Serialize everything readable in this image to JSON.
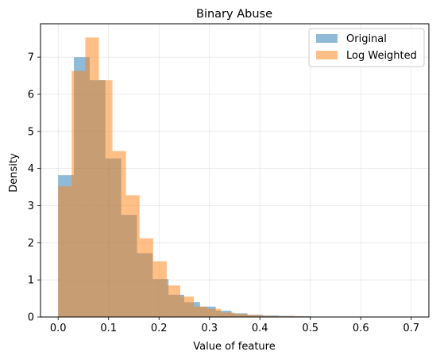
{
  "chart_data": {
    "type": "histogram",
    "title": "Binary Abuse",
    "xlabel": "Value of feature",
    "ylabel": "Density",
    "xlim": [
      -0.035,
      0.735
    ],
    "ylim": [
      0,
      7.9
    ],
    "xticks": [
      0.0,
      0.1,
      0.2,
      0.3,
      0.4,
      0.5,
      0.6,
      0.7
    ],
    "xtick_labels": [
      "0.0",
      "0.1",
      "0.2",
      "0.3",
      "0.4",
      "0.5",
      "0.6",
      "0.7"
    ],
    "yticks": [
      0,
      1,
      2,
      3,
      4,
      5,
      6,
      7
    ],
    "ytick_labels": [
      "0",
      "1",
      "2",
      "3",
      "4",
      "5",
      "6",
      "7"
    ],
    "grid": true,
    "legend_position": "top-right",
    "series": [
      {
        "name": "Original",
        "color": "#1f77b4",
        "alpha": 0.5,
        "bin_start": 0.0,
        "bin_width": 0.03125,
        "values": [
          3.82,
          7.0,
          6.38,
          4.27,
          2.75,
          1.72,
          1.02,
          0.6,
          0.4,
          0.28,
          0.17,
          0.1,
          0.06,
          0.04,
          0.03,
          0.02,
          0.01,
          0.01,
          0.01,
          0.005
        ]
      },
      {
        "name": "Log Weighted",
        "color": "#ff7f0e",
        "alpha": 0.5,
        "bin_start": 0.0,
        "bin_width": 0.0269,
        "values": [
          3.52,
          6.63,
          7.53,
          6.38,
          4.47,
          3.28,
          2.12,
          1.5,
          0.85,
          0.55,
          0.28,
          0.22,
          0.12,
          0.08,
          0.05,
          0.03,
          0.02,
          0.02,
          0.01,
          0.01,
          0.01,
          0.005,
          0.005,
          0.005,
          0.005,
          0.003
        ]
      }
    ]
  }
}
